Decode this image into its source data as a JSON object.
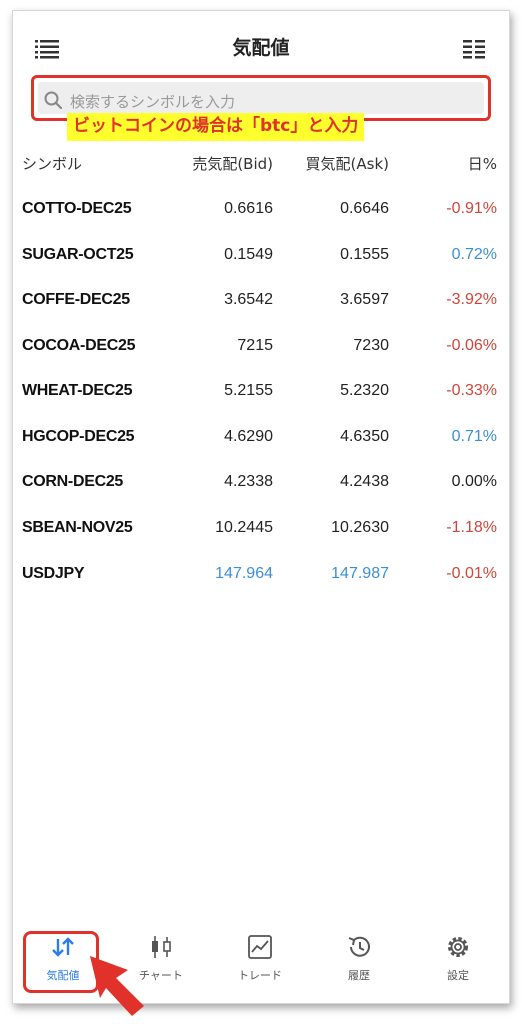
{
  "header": {
    "title": "気配値",
    "menu_icon": "list-icon",
    "sort_icon": "columns-icon"
  },
  "search": {
    "placeholder": "検索するシンボルを入力",
    "icon": "search-icon"
  },
  "annotation": {
    "text": "ビットコインの場合は「btc」と入力"
  },
  "columns": {
    "symbol": "シンボル",
    "bid": "売気配(Bid)",
    "ask": "買気配(Ask)",
    "change": "日%"
  },
  "rows": [
    {
      "symbol": "COTTO-DEC25",
      "bid": "0.6616",
      "ask": "0.6646",
      "change": "-0.91%"
    },
    {
      "symbol": "SUGAR-OCT25",
      "bid": "0.1549",
      "ask": "0.1555",
      "change": "0.72%"
    },
    {
      "symbol": "COFFE-DEC25",
      "bid": "3.6542",
      "ask": "3.6597",
      "change": "-3.92%"
    },
    {
      "symbol": "COCOA-DEC25",
      "bid": "7215",
      "ask": "7230",
      "change": "-0.06%"
    },
    {
      "symbol": "WHEAT-DEC25",
      "bid": "5.2155",
      "ask": "5.2320",
      "change": "-0.33%"
    },
    {
      "symbol": "HGCOP-DEC25",
      "bid": "4.6290",
      "ask": "4.6350",
      "change": "0.71%"
    },
    {
      "symbol": "CORN-DEC25",
      "bid": "4.2338",
      "ask": "4.2438",
      "change": "0.00%"
    },
    {
      "symbol": "SBEAN-NOV25",
      "bid": "10.2445",
      "ask": "10.2630",
      "change": "-1.18%"
    },
    {
      "symbol": "USDJPY",
      "bid": "147.964",
      "ask": "147.987",
      "change": "-0.01%"
    }
  ],
  "nav": [
    {
      "label": "気配値",
      "icon": "quotes-arrows-icon",
      "active": true
    },
    {
      "label": "チャート",
      "icon": "candlestick-icon",
      "active": false
    },
    {
      "label": "トレード",
      "icon": "trade-chart-icon",
      "active": false
    },
    {
      "label": "履歴",
      "icon": "history-icon",
      "active": false
    },
    {
      "label": "設定",
      "icon": "gear-icon",
      "active": false
    }
  ],
  "colors": {
    "negative": "#d0453a",
    "positive": "#3a8fd9",
    "neutral": "#222222",
    "highlight_red": "#e0322a",
    "annotation_bg": "#ffff2e",
    "active_blue": "#2b7de9"
  }
}
